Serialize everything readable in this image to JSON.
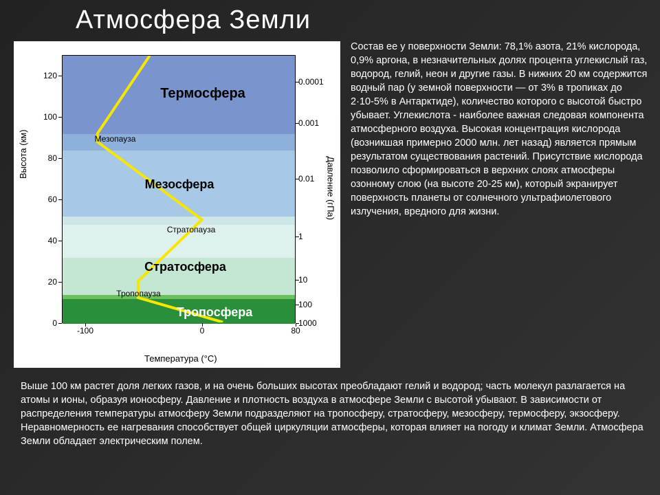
{
  "title": "Атмосфера Земли",
  "chart": {
    "type": "line",
    "xlabel": "Температура (°C)",
    "ylabel": "Высота (км)",
    "y2label": "Давление (гПа)",
    "xlim": [
      -120,
      80
    ],
    "ylim": [
      0,
      130
    ],
    "xtick_vals": [
      -100,
      0,
      80
    ],
    "xtick_labels": [
      "-100",
      "0",
      "80"
    ],
    "ytick_vals": [
      0,
      20,
      40,
      60,
      80,
      100,
      120
    ],
    "ytick_labels": [
      "0",
      "20",
      "40",
      "60",
      "80",
      "100",
      "120"
    ],
    "y2_ticks": [
      {
        "h": 0,
        "label": "1000"
      },
      {
        "h": 9,
        "label": "100"
      },
      {
        "h": 21,
        "label": "10"
      },
      {
        "h": 42,
        "label": "1"
      },
      {
        "h": 70,
        "label": "0.01"
      },
      {
        "h": 97,
        "label": "0.001"
      },
      {
        "h": 117,
        "label": "0.0001"
      }
    ],
    "temp_profile": [
      {
        "t": 18,
        "h": 0
      },
      {
        "t": -55,
        "h": 12
      },
      {
        "t": -55,
        "h": 20
      },
      {
        "t": 0,
        "h": 50
      },
      {
        "t": -90,
        "h": 88
      },
      {
        "t": -90,
        "h": 92
      },
      {
        "t": -45,
        "h": 130
      }
    ],
    "line_color": "#f7e600",
    "line_width": 4,
    "bands": [
      {
        "from": 0,
        "to": 12,
        "color": "#2a8f3a"
      },
      {
        "from": 12,
        "to": 14,
        "color": "#6bbf5c"
      },
      {
        "from": 14,
        "to": 32,
        "color": "#c4e7d4"
      },
      {
        "from": 32,
        "to": 48,
        "color": "#dff1ec"
      },
      {
        "from": 48,
        "to": 52,
        "color": "#cde6e8"
      },
      {
        "from": 52,
        "to": 84,
        "color": "#a8c9e6"
      },
      {
        "from": 84,
        "to": 92,
        "color": "#8eb0db"
      },
      {
        "from": 92,
        "to": 130,
        "color": "#7a94cd"
      }
    ],
    "layer_labels": [
      {
        "text": "Тропосфера",
        "t": 10,
        "h": 6,
        "size": 18,
        "weight": "bold",
        "bg": true
      },
      {
        "text": "Тропопауза",
        "t": -55,
        "h": 15,
        "size": 12,
        "weight": "normal"
      },
      {
        "text": "Стратосфера",
        "t": -15,
        "h": 28,
        "size": 18,
        "weight": "bold"
      },
      {
        "text": "Стратопауза",
        "t": -10,
        "h": 46,
        "size": 12,
        "weight": "normal"
      },
      {
        "text": "Мезосфера",
        "t": -20,
        "h": 68,
        "size": 18,
        "weight": "bold"
      },
      {
        "text": "Мезопауза",
        "t": -75,
        "h": 90,
        "size": 12,
        "weight": "normal"
      },
      {
        "text": "Термосфера",
        "t": 0,
        "h": 112,
        "size": 20,
        "weight": "bold"
      }
    ]
  },
  "side_text": "Состав ее у поверхности Земли: 78,1% азота, 21% кислорода, 0,9% аргона, в незначительных долях процента углекислый газ, водород, гелий, неон и другие газы. В нижних 20 км содержится водный пар (у земной поверхности — от 3% в тропиках до 2·10-5% в Антарктиде), количество которого с высотой быстро убывает. Углекислота - наиболее важная следовая компонента атмосферного воздуха. Высокая концентрация кислорода (возникшая примерно 2000 млн. лет назад) является прямым результатом существования растений. Присутствие кислорода позволило сформироваться в верхних слоях атмосферы озонному слою (на высоте 20-25 км), который экранирует поверхность планеты от солнечного ультрафиолетового излучения, вредного для жизни.",
  "bottom_text": "Выше 100 км растет доля легких газов, и на очень больших высотах преобладают гелий и водород; часть молекул разлагается на атомы и ионы, образуя ионосферу. Давление и плотность воздуха в атмосфере Земли с высотой убывают. В зависимости от распределения температуры атмосферу Земли подразделяют на тропосферу, стратосферу, мезосферу, термосферу, экзосферу. Неравномерность ее нагревания способствует общей циркуляции атмосферы, которая влияет на погоду и климат Земли. Атмосфера Земли обладает электрическим полем."
}
